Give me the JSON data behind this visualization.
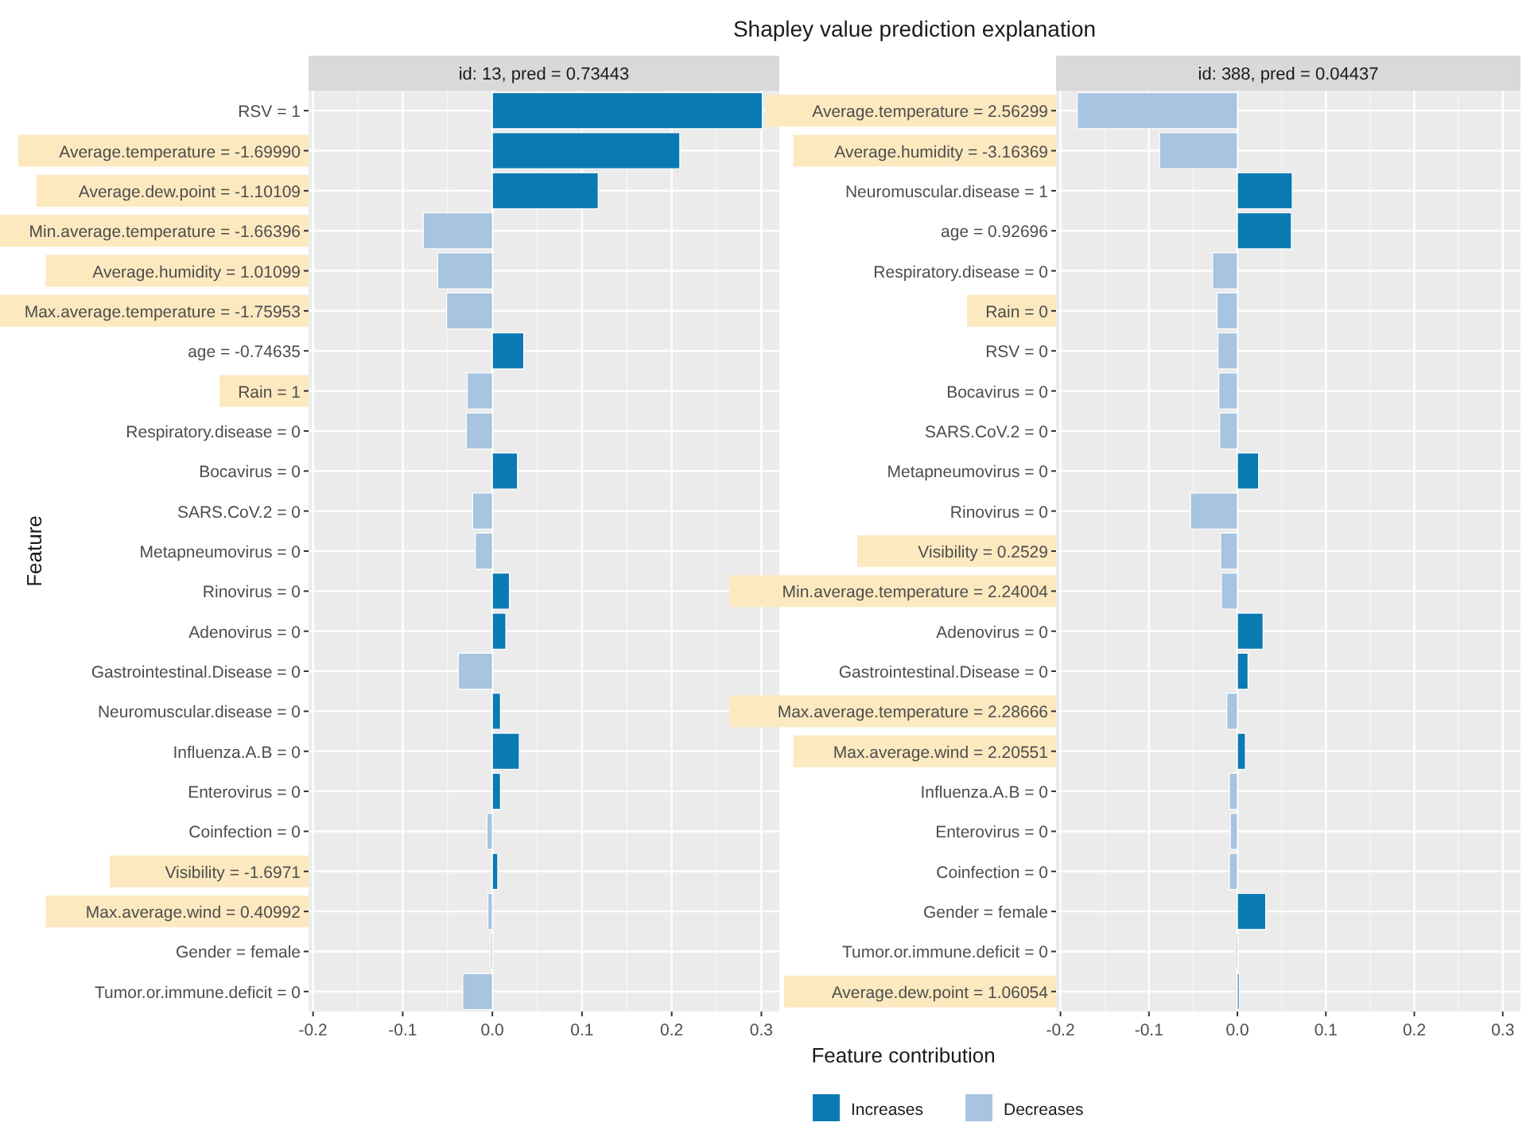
{
  "chart_data": [
    {
      "type": "bar",
      "orientation": "horizontal",
      "title": "Shapley value prediction explanation",
      "subtitle": "id: 13, pred = 0.73443",
      "ylabel": "Feature",
      "categories": [
        "RSV = 1",
        "Average.temperature = -1.69990",
        "Average.dew.point = -1.10109",
        "Min.average.temperature = -1.66396",
        "Average.humidity =  1.01099",
        "Max.average.temperature = -1.75953",
        "age = -0.74635",
        "Rain = 1",
        "Respiratory.disease = 0",
        "Bocavirus = 0",
        "SARS.CoV.2 = 0",
        "Metapneumovirus = 0",
        "Rinovirus = 0",
        "Adenovirus = 0",
        "Gastrointestinal.Disease = 0",
        "Neuromuscular.disease = 0",
        "Influenza.A.B = 0",
        "Enterovirus = 0",
        "Coinfection = 0",
        "Visibility = -1.6971",
        "Max.average.wind =  0.40992",
        "Gender = female",
        "Tumor.or.immune.deficit = 0"
      ],
      "series": [
        {
          "color": "#0a7ab3",
          "values": [
            0.301,
            0.209,
            0.118,
            null,
            null,
            null,
            0.035,
            null,
            null,
            0.028,
            null,
            null,
            0.019,
            0.015,
            null,
            0.009,
            0.03,
            0.009,
            null,
            0.006,
            null,
            null,
            null
          ]
        },
        {
          "color": "#a7c4e0",
          "values": [
            null,
            null,
            null,
            -0.077,
            -0.061,
            -0.051,
            null,
            -0.028,
            -0.029,
            null,
            -0.022,
            -0.019,
            null,
            null,
            -0.038,
            null,
            null,
            null,
            -0.006,
            null,
            -0.005,
            -0.002,
            -0.033
          ]
        }
      ],
      "xlim": [
        -0.205,
        0.32
      ],
      "xticks": [
        {
          "value": -0.2,
          "label": "-0.2"
        },
        {
          "value": -0.1,
          "label": "-0.1"
        },
        {
          "value": 0,
          "label": "0.0"
        },
        {
          "value": 0.1,
          "label": "0.1"
        },
        {
          "value": 0.2,
          "label": "0.2"
        },
        {
          "value": 0.3,
          "label": "0.3"
        }
      ],
      "grid": true,
      "legend": false
    },
    {
      "type": "bar",
      "orientation": "horizontal",
      "subtitle": "id: 388, pred = 0.04437",
      "xlabel": "Feature contribution",
      "categories": [
        "Average.temperature =  2.56299",
        "Average.humidity = -3.16369",
        "Neuromuscular.disease = 1",
        "age =  0.92696",
        "Respiratory.disease = 0",
        "Rain = 0",
        "RSV = 0",
        "Bocavirus = 0",
        "SARS.CoV.2 = 0",
        "Metapneumovirus = 0",
        "Rinovirus = 0",
        "Visibility =  0.2529",
        "Min.average.temperature =  2.24004",
        "Adenovirus = 0",
        "Gastrointestinal.Disease = 0",
        "Max.average.temperature =  2.28666",
        "Max.average.wind =  2.20551",
        "Influenza.A.B = 0",
        "Enterovirus = 0",
        "Coinfection = 0",
        "Gender = female",
        "Tumor.or.immune.deficit = 0",
        "Average.dew.point =  1.06054"
      ],
      "series": [
        {
          "name": "Increases",
          "color": "#0a7ab3",
          "values": [
            null,
            null,
            0.062,
            0.061,
            null,
            null,
            null,
            null,
            null,
            0.024,
            null,
            null,
            null,
            0.029,
            0.012,
            null,
            0.009,
            null,
            null,
            null,
            0.032,
            null,
            0.002
          ]
        },
        {
          "name": "Decreases",
          "color": "#a7c4e0",
          "values": [
            -0.181,
            -0.088,
            null,
            null,
            -0.028,
            -0.023,
            -0.022,
            -0.021,
            -0.02,
            null,
            -0.053,
            -0.019,
            -0.018,
            null,
            null,
            -0.012,
            null,
            -0.009,
            -0.008,
            -0.009,
            null,
            -0.002,
            null
          ]
        }
      ],
      "xlim": [
        -0.205,
        0.32
      ],
      "xticks": [
        {
          "value": -0.2,
          "label": "-0.2"
        },
        {
          "value": -0.1,
          "label": "-0.1"
        },
        {
          "value": 0,
          "label": "0.0"
        },
        {
          "value": 0.1,
          "label": "0.1"
        },
        {
          "value": 0.2,
          "label": "0.2"
        },
        {
          "value": 0.3,
          "label": "0.3"
        }
      ],
      "grid": true,
      "legend": "bottom"
    }
  ]
}
